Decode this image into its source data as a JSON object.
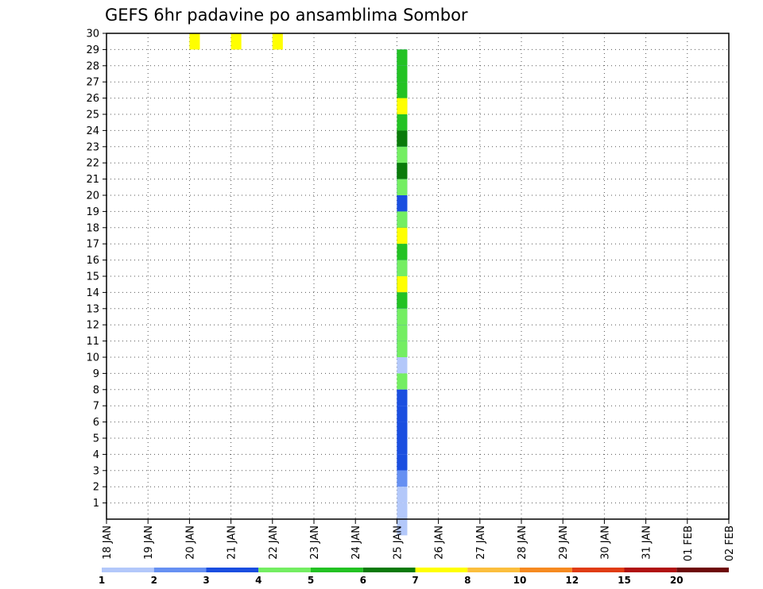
{
  "chart_data": {
    "type": "heatmap",
    "title": "GEFS 6hr padavine po ansamblima Sombor",
    "xlabel": "",
    "ylabel": "",
    "x_ticks": [
      "18 JAN",
      "19 JAN",
      "20 JAN",
      "21 JAN",
      "22 JAN",
      "23 JAN",
      "24 JAN",
      "25 JAN",
      "26 JAN",
      "27 JAN",
      "28 JAN",
      "29 JAN",
      "30 JAN",
      "31 JAN",
      "01 FEB",
      "02 FEB"
    ],
    "y_ticks": [
      "1",
      "2",
      "3",
      "4",
      "5",
      "6",
      "7",
      "8",
      "9",
      "10",
      "11",
      "12",
      "13",
      "14",
      "15",
      "16",
      "17",
      "18",
      "19",
      "20",
      "21",
      "22",
      "23",
      "24",
      "25",
      "26",
      "27",
      "28",
      "29",
      "30"
    ],
    "ylim": [
      0,
      30
    ],
    "x_step_hours": 6,
    "grid": "dotted",
    "colorbar": {
      "labels": [
        "1",
        "2",
        "3",
        "4",
        "5",
        "6",
        "7",
        "8",
        "10",
        "12",
        "15",
        "20"
      ],
      "colors": [
        "#b3c8fa",
        "#6690f2",
        "#1a4ee0",
        "#74ee62",
        "#23c223",
        "#0a7a0a",
        "#ffff00",
        "#fbbe3d",
        "#f68a20",
        "#e03c14",
        "#b01010",
        "#6e0808"
      ]
    },
    "cells": [
      [
        6,
        30,
        2
      ],
      [
        6,
        30,
        3
      ],
      [
        6,
        30,
        4
      ],
      [
        1,
        29,
        7
      ],
      [
        2,
        29,
        7
      ],
      [
        3,
        29,
        7
      ],
      [
        4,
        29,
        7
      ],
      [
        0,
        28,
        7
      ],
      [
        1,
        28,
        7
      ],
      [
        2,
        28,
        7
      ],
      [
        3,
        28,
        7
      ],
      [
        4,
        28,
        7
      ],
      [
        4,
        27,
        7
      ],
      [
        5,
        26,
        7
      ],
      [
        6,
        26,
        7
      ],
      [
        4,
        25,
        7
      ],
      [
        3,
        24,
        7
      ],
      [
        4,
        24,
        7
      ],
      [
        5,
        24,
        7
      ],
      [
        2,
        23,
        7
      ],
      [
        3,
        23,
        7
      ],
      [
        0,
        22,
        7
      ],
      [
        1,
        22,
        7
      ],
      [
        2,
        22,
        7
      ],
      [
        3,
        22,
        7
      ],
      [
        4,
        22,
        7
      ],
      [
        5,
        22,
        7
      ],
      [
        0,
        21,
        7
      ],
      [
        1,
        21,
        7
      ],
      [
        2,
        21,
        7
      ],
      [
        3,
        21,
        7
      ],
      [
        1,
        20,
        7
      ],
      [
        2,
        20,
        7
      ],
      [
        2,
        19,
        7
      ],
      [
        3,
        19,
        7
      ],
      [
        5,
        18,
        7
      ],
      [
        6,
        18,
        7
      ],
      [
        4,
        17,
        7
      ],
      [
        0,
        16,
        7
      ],
      [
        1,
        16,
        7
      ],
      [
        2,
        16,
        7
      ],
      [
        3,
        16,
        7
      ],
      [
        1,
        15,
        7
      ],
      [
        2,
        15,
        7
      ],
      [
        4,
        15,
        7
      ],
      [
        5,
        15,
        7
      ],
      [
        6,
        15,
        7
      ],
      [
        1,
        14,
        7
      ],
      [
        2,
        14,
        7
      ],
      [
        3,
        14,
        7
      ],
      [
        4,
        14,
        7
      ],
      [
        0,
        13,
        7
      ],
      [
        1,
        13,
        7
      ],
      [
        2,
        13,
        7
      ],
      [
        3,
        13,
        7
      ],
      [
        0,
        12,
        7
      ],
      [
        1,
        12,
        7
      ],
      [
        2,
        12,
        7
      ],
      [
        3,
        12,
        7
      ],
      [
        0,
        11,
        7
      ],
      [
        1,
        11,
        7
      ],
      [
        2,
        11,
        7
      ],
      [
        3,
        11,
        7
      ],
      [
        0,
        10,
        7
      ],
      [
        3,
        9,
        7
      ],
      [
        0,
        8,
        7
      ],
      [
        1,
        8,
        7
      ],
      [
        2,
        8,
        7
      ],
      [
        0,
        7,
        7
      ],
      [
        1,
        7,
        7
      ],
      [
        2,
        7,
        7
      ],
      [
        0,
        6,
        7
      ],
      [
        1,
        6,
        7
      ],
      [
        2,
        6,
        7
      ],
      [
        0,
        5,
        7
      ],
      [
        1,
        5,
        7
      ],
      [
        2,
        5,
        7
      ],
      [
        0,
        4,
        7
      ],
      [
        1,
        4,
        7
      ],
      [
        2,
        4,
        7
      ],
      [
        0,
        3,
        7
      ],
      [
        1,
        3,
        7
      ],
      [
        0,
        2,
        7
      ],
      [
        0,
        1,
        7
      ],
      [
        0,
        0,
        7
      ]
    ]
  }
}
